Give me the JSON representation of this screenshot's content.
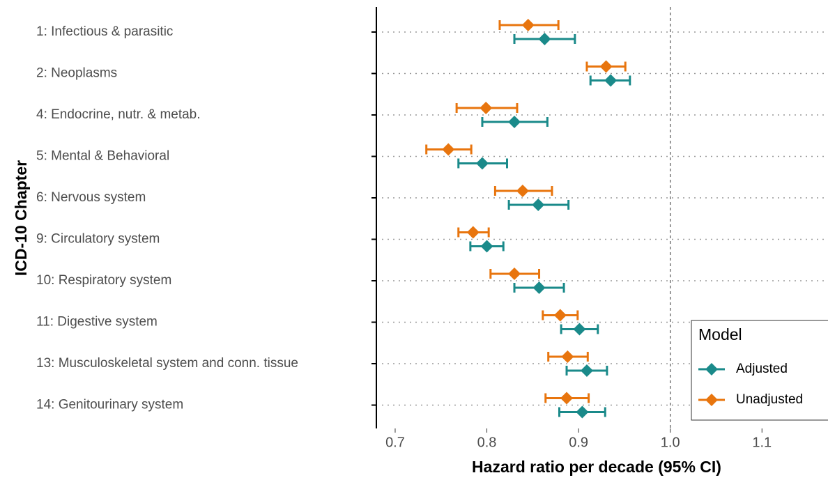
{
  "chart_data": {
    "type": "forest",
    "x_label": "Hazard ratio per decade (95% CI)",
    "y_label": "ICD-10 Chapter",
    "categories": [
      "1: Infectious & parasitic",
      "2: Neoplasms",
      "4: Endocrine, nutr. & metab.",
      "5: Mental & Behavioral",
      "6: Nervous system",
      "9: Circulatory system",
      "10: Respiratory system",
      "11: Digestive system",
      "13: Musculoskeletal system and conn. tissue",
      "14: Genitourinary system"
    ],
    "series": [
      {
        "name": "Adjusted",
        "color": "#1a8a8a",
        "values": [
          0.863,
          0.935,
          0.83,
          0.795,
          0.856,
          0.8,
          0.857,
          0.901,
          0.909,
          0.904
        ],
        "lower": [
          0.83,
          0.913,
          0.795,
          0.769,
          0.824,
          0.782,
          0.83,
          0.881,
          0.887,
          0.879
        ],
        "upper": [
          0.896,
          0.956,
          0.866,
          0.822,
          0.889,
          0.818,
          0.884,
          0.921,
          0.931,
          0.929
        ]
      },
      {
        "name": "Unadjusted",
        "color": "#e8750e",
        "values": [
          0.845,
          0.93,
          0.799,
          0.758,
          0.839,
          0.785,
          0.83,
          0.88,
          0.888,
          0.887
        ],
        "lower": [
          0.814,
          0.909,
          0.767,
          0.734,
          0.809,
          0.769,
          0.804,
          0.861,
          0.867,
          0.864
        ],
        "upper": [
          0.878,
          0.951,
          0.833,
          0.783,
          0.871,
          0.802,
          0.857,
          0.899,
          0.91,
          0.911
        ]
      }
    ],
    "legend_title": "Model",
    "legend_position": "bottom-right",
    "reference_line": 1.0,
    "xlim": [
      0.6795,
      1.172
    ],
    "xticks": [
      {
        "value": 0.7,
        "label": "0.7"
      },
      {
        "value": 0.8,
        "label": "0.8"
      },
      {
        "value": 0.9,
        "label": "0.9"
      },
      {
        "value": 1.0,
        "label": "1.0"
      },
      {
        "value": 1.1,
        "label": "1.1"
      }
    ],
    "grid": true
  }
}
